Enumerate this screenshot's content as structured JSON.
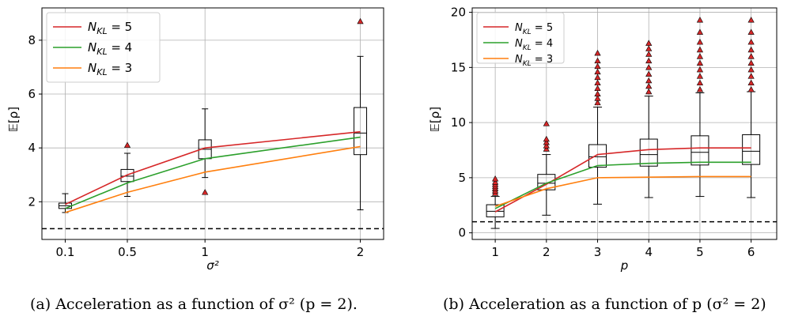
{
  "captions": {
    "a": "(a) Acceleration as a function of σ² (p = 2).",
    "b": "(b) Acceleration as a function of p (σ² = 2)"
  },
  "colors": {
    "n5": "#d62728",
    "n4": "#2ca02c",
    "n3": "#ff7f0e",
    "outlier": "#d62728"
  },
  "chart_data": [
    {
      "type": "line",
      "xlabel": "σ²",
      "ylabel": "𝔼[ρ]",
      "x": [
        0.1,
        0.5,
        1,
        2
      ],
      "x_tick_labels": [
        "0.1",
        "0.5",
        "1",
        "2"
      ],
      "y_ticks": [
        2,
        4,
        6,
        8
      ],
      "ylim": [
        0.6,
        9.2
      ],
      "xlim": [
        -0.05,
        2.15
      ],
      "grid": true,
      "legend_position": "top-left",
      "reference_line": 1,
      "series": [
        {
          "name": "N_KL = 5",
          "label_main": "N",
          "label_sub": "KL",
          "label_rest": " = 5",
          "color": "#d62728",
          "values": [
            1.9,
            3.0,
            4.0,
            4.6
          ]
        },
        {
          "name": "N_KL = 4",
          "label_main": "N",
          "label_sub": "KL",
          "label_rest": " = 4",
          "color": "#2ca02c",
          "values": [
            1.75,
            2.7,
            3.6,
            4.4
          ]
        },
        {
          "name": "N_KL = 3",
          "label_main": "N",
          "label_sub": "KL",
          "label_rest": " = 3",
          "color": "#ff7f0e",
          "values": [
            1.6,
            2.35,
            3.1,
            4.05
          ]
        }
      ],
      "boxplots": [
        {
          "x": 0.1,
          "q1": 1.75,
          "median": 1.85,
          "q3": 1.95,
          "whisker_low": 1.6,
          "whisker_high": 2.3,
          "outliers": []
        },
        {
          "x": 0.5,
          "q1": 2.75,
          "median": 2.95,
          "q3": 3.2,
          "whisker_low": 2.2,
          "whisker_high": 3.8,
          "outliers": [
            4.1
          ]
        },
        {
          "x": 1,
          "q1": 3.6,
          "median": 3.95,
          "q3": 4.3,
          "whisker_low": 2.9,
          "whisker_high": 5.45,
          "outliers": [
            2.35
          ]
        },
        {
          "x": 2,
          "q1": 3.75,
          "median": 4.55,
          "q3": 5.5,
          "whisker_low": 1.7,
          "whisker_high": 7.4,
          "outliers": [
            8.7
          ]
        }
      ]
    },
    {
      "type": "line",
      "xlabel": "p",
      "ylabel": "𝔼[ρ]",
      "x": [
        1,
        2,
        3,
        4,
        5,
        6
      ],
      "x_tick_labels": [
        "1",
        "2",
        "3",
        "4",
        "5",
        "6"
      ],
      "y_ticks": [
        0,
        5,
        10,
        15,
        20
      ],
      "ylim": [
        -0.6,
        20.4
      ],
      "xlim": [
        0.55,
        6.5
      ],
      "grid": true,
      "legend_position": "top-left",
      "reference_line": 1,
      "series": [
        {
          "name": "N_KL = 5",
          "label_main": "N",
          "label_sub": "KL",
          "label_rest": " = 5",
          "color": "#d62728",
          "values": [
            1.9,
            4.4,
            7.1,
            7.55,
            7.7,
            7.7
          ]
        },
        {
          "name": "N_KL = 4",
          "label_main": "N",
          "label_sub": "KL",
          "label_rest": " = 4",
          "color": "#2ca02c",
          "values": [
            2.2,
            4.5,
            6.1,
            6.3,
            6.4,
            6.4
          ]
        },
        {
          "name": "N_KL = 3",
          "label_main": "N",
          "label_sub": "KL",
          "label_rest": " = 3",
          "color": "#ff7f0e",
          "values": [
            2.4,
            4.0,
            5.0,
            5.05,
            5.1,
            5.1
          ]
        }
      ],
      "boxplots": [
        {
          "x": 1,
          "q1": 1.45,
          "median": 1.95,
          "q3": 2.55,
          "whisker_low": 0.4,
          "whisker_high": 3.3,
          "outliers": [
            3.6,
            3.8,
            4.0,
            4.2,
            4.4,
            4.6,
            4.9
          ]
        },
        {
          "x": 2,
          "q1": 3.9,
          "median": 4.5,
          "q3": 5.3,
          "whisker_low": 1.6,
          "whisker_high": 7.1,
          "outliers": [
            7.6,
            7.9,
            8.2,
            8.5,
            9.9
          ]
        },
        {
          "x": 3,
          "q1": 5.95,
          "median": 6.9,
          "q3": 8.0,
          "whisker_low": 2.6,
          "whisker_high": 11.4,
          "outliers": [
            11.8,
            12.2,
            12.6,
            13.1,
            13.6,
            14.1,
            14.6,
            15.1,
            15.6,
            16.3
          ]
        },
        {
          "x": 4,
          "q1": 6.05,
          "median": 7.1,
          "q3": 8.5,
          "whisker_low": 3.2,
          "whisker_high": 12.4,
          "outliers": [
            12.8,
            13.3,
            13.8,
            14.4,
            15.0,
            15.6,
            16.2,
            16.7,
            17.2
          ]
        },
        {
          "x": 5,
          "q1": 6.15,
          "median": 7.3,
          "q3": 8.8,
          "whisker_low": 3.3,
          "whisker_high": 12.7,
          "outliers": [
            13.0,
            13.6,
            14.2,
            14.8,
            15.4,
            16.0,
            16.6,
            17.3,
            18.2,
            19.3
          ]
        },
        {
          "x": 6,
          "q1": 6.2,
          "median": 7.4,
          "q3": 8.9,
          "whisker_low": 3.2,
          "whisker_high": 12.8,
          "outliers": [
            13.0,
            13.6,
            14.2,
            14.8,
            15.4,
            16.0,
            16.6,
            17.3,
            18.2,
            19.3
          ]
        }
      ]
    }
  ]
}
